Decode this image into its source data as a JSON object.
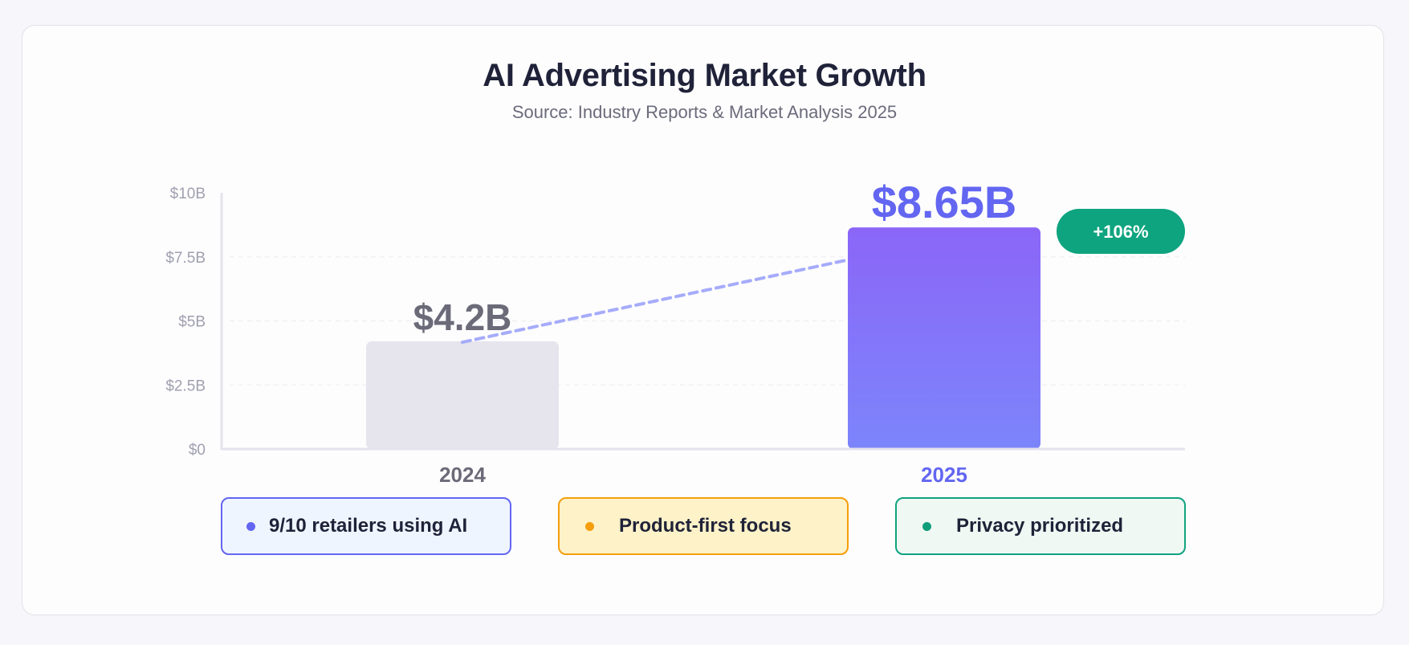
{
  "chart_data": {
    "type": "bar",
    "title": "AI Advertising Market Growth",
    "subtitle": "Source: Industry Reports & Market Analysis 2025",
    "categories": [
      "2024",
      "2025"
    ],
    "values": [
      4.2,
      8.65
    ],
    "value_labels": [
      "$4.2B",
      "$8.65B"
    ],
    "unit": "$B",
    "ylim": [
      0,
      10
    ],
    "yticks": [
      0,
      2.5,
      5,
      7.5,
      10
    ],
    "ytick_labels": [
      "$0",
      "$2.5B",
      "$5B",
      "$7.5B",
      "$10B"
    ],
    "growth_badge": "+106%",
    "trend_line": "dashed",
    "grid": true,
    "colors": {
      "bar_2024": "#e6e4ec",
      "bar_2025_top": "#8b66f8",
      "bar_2025_bottom": "#7c85fb",
      "label_2024": "#6b6a78",
      "label_2025": "#6366f1",
      "trend": "#a6acfa",
      "badge": "#0ea47f",
      "axis": "#e4e3ec",
      "tick_text": "#a0a0b0"
    }
  },
  "highlights": [
    {
      "label": "9/10 retailers using AI",
      "color": "#6366f1"
    },
    {
      "label": "Product-first focus",
      "color": "#f59e0b"
    },
    {
      "label": "Privacy prioritized",
      "color": "#10a37f"
    }
  ]
}
